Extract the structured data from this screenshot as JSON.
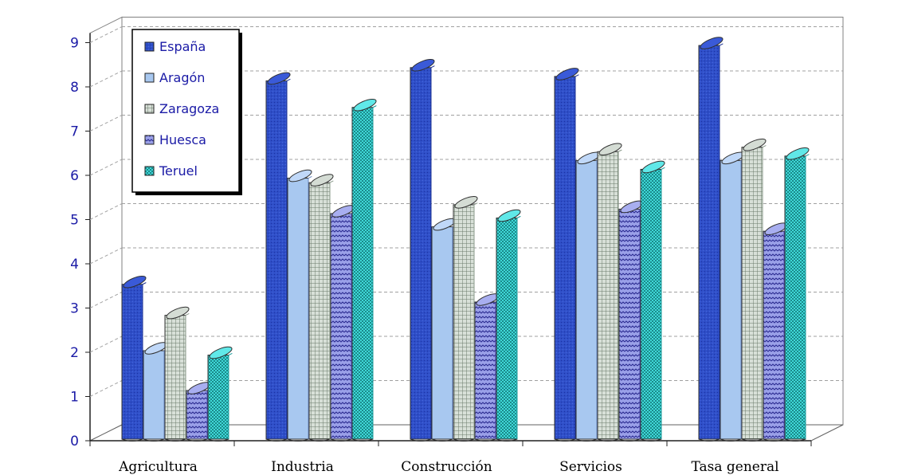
{
  "chart_data": {
    "type": "bar",
    "categories": [
      "Agricultura",
      "Industria",
      "Construcción",
      "Servicios",
      "Tasa general"
    ],
    "series": [
      {
        "name": "España",
        "values": [
          3.5,
          8.1,
          8.4,
          8.2,
          8.9
        ]
      },
      {
        "name": "Aragón",
        "values": [
          2.0,
          5.9,
          4.8,
          6.3,
          6.3
        ]
      },
      {
        "name": "Zaragoza",
        "values": [
          2.8,
          5.8,
          5.3,
          6.5,
          6.6
        ]
      },
      {
        "name": "Huesca",
        "values": [
          1.1,
          5.1,
          3.1,
          5.2,
          4.7
        ]
      },
      {
        "name": "Teruel",
        "values": [
          1.9,
          7.5,
          5.0,
          6.1,
          6.4
        ]
      }
    ],
    "y_ticks": [
      "0",
      "1",
      "2",
      "3",
      "4",
      "5",
      "6",
      "7",
      "8",
      "9"
    ],
    "ylim": [
      0,
      9
    ],
    "grid": true,
    "legend_position": "top-left",
    "title": "",
    "xlabel": "",
    "ylabel": "",
    "colors": {
      "España": "#2f4fc8",
      "Aragón": "#a8c8f0",
      "Zaragoza": "#c8d4c8",
      "Huesca": "#8890e0",
      "Teruel": "#40d0d0",
      "axis_text": "#1a1aa6"
    },
    "patterns": {
      "España": "dots",
      "Aragón": "solid",
      "Zaragoza": "grid",
      "Huesca": "zigzag",
      "Teruel": "checker"
    }
  }
}
